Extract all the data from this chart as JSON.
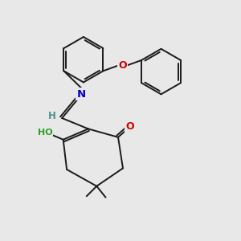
{
  "background_color": "#e8e8e8",
  "bond_color": "#1a1a1a",
  "atom_colors": {
    "N": "#0000cc",
    "O": "#cc0000",
    "OH": "#2ca02c",
    "H_label": "#4a9090"
  },
  "figsize": [
    3.0,
    3.0
  ],
  "dpi": 100,
  "xlim": [
    0,
    10
  ],
  "ylim": [
    0,
    10
  ]
}
